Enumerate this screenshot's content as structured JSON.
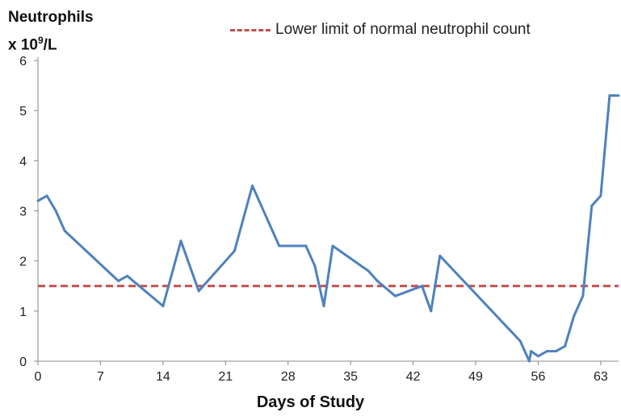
{
  "chart_data": {
    "type": "line",
    "ylabel_line1": "Neutrophils",
    "ylabel_line2_prefix": "x 10",
    "ylabel_line2_sup": "9",
    "ylabel_line2_suffix": "/L",
    "xlabel": "Days of Study",
    "xlim": [
      0,
      65
    ],
    "ylim": [
      0,
      6
    ],
    "xticks": [
      0,
      7,
      14,
      21,
      28,
      35,
      42,
      49,
      56,
      63
    ],
    "yticks": [
      0,
      1,
      2,
      3,
      4,
      5,
      6
    ],
    "grid": false,
    "legend_position": "top-right",
    "series": [
      {
        "color": "#4f81bd",
        "x": [
          0,
          1,
          2,
          3,
          9,
          10,
          14,
          16,
          18,
          22,
          24,
          27,
          30,
          31,
          32,
          33,
          37,
          38,
          40,
          43,
          44,
          45,
          54,
          55,
          55.2,
          56,
          57,
          58,
          59,
          60,
          61,
          62,
          63,
          64,
          65
        ],
        "y": [
          3.2,
          3.3,
          3.0,
          2.6,
          1.6,
          1.7,
          1.1,
          2.4,
          1.4,
          2.2,
          3.5,
          2.3,
          2.3,
          1.9,
          1.1,
          2.3,
          1.8,
          1.6,
          1.3,
          1.5,
          1.0,
          2.1,
          0.4,
          0.0,
          0.2,
          0.1,
          0.2,
          0.2,
          0.3,
          0.9,
          1.3,
          3.1,
          3.3,
          5.3,
          5.3
        ]
      }
    ],
    "reference_line": {
      "name": "Lower limit of normal neutrophil count",
      "y": 1.5,
      "color": "#c0504d",
      "style": "dashed"
    }
  }
}
